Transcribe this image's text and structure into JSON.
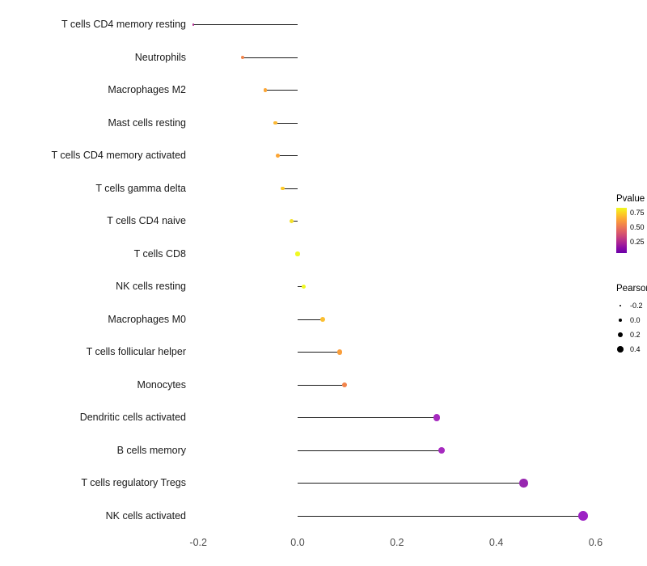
{
  "chart_data": {
    "type": "lollipop",
    "title": "",
    "xlabel": "",
    "ylabel": "",
    "xlim": [
      -0.25,
      0.66
    ],
    "x_ticks": [
      -0.2,
      0.0,
      0.2,
      0.4,
      0.6
    ],
    "x_tick_labels": [
      "-0.2",
      "0.0",
      "0.2",
      "0.4",
      "0.6"
    ],
    "grid": "off",
    "categories": [
      "T cells CD4 memory resting",
      "Neutrophils",
      "Macrophages M2",
      "Mast cells resting",
      "T cells CD4 memory activated",
      "T cells gamma delta",
      "T cells CD4 naive",
      "T cells CD8",
      "NK cells resting",
      "Macrophages M0",
      "T cells follicular helper",
      "Monocytes",
      "Dendritic cells activated",
      "B cells memory",
      "T cells regulatory  Tregs",
      "NK cells activated"
    ],
    "pearson": [
      -0.21,
      -0.11,
      -0.065,
      -0.045,
      -0.04,
      -0.03,
      -0.012,
      0.0,
      0.012,
      0.05,
      0.085,
      0.095,
      0.28,
      0.29,
      0.455,
      0.575
    ],
    "point_colors": [
      "#B02A8F",
      "#F2844B",
      "#FCA636",
      "#FCB834",
      "#FCA636",
      "#FCC928",
      "#F4E02A",
      "#F0F921",
      "#F0F921",
      "#FBBF31",
      "#FA9E3B",
      "#F2844B",
      "#A62ABF",
      "#A62ABF",
      "#9827B0",
      "#9C22C4"
    ],
    "legend": {
      "color_title": "Pvalue",
      "color_tick_labels": [
        "0.75",
        "0.50",
        "0.25"
      ],
      "gradient_stops": [
        "#F0F921",
        "#FCCE25",
        "#FCA636",
        "#F2844B",
        "#E16462",
        "#CC4778",
        "#B12A90",
        "#8F0DA4",
        "#6A00A8"
      ],
      "size_title": "Pearson",
      "size_tick_labels": [
        "-0.2",
        "0.0",
        "0.2",
        "0.4"
      ],
      "size_tick_values": [
        -0.2,
        0.0,
        0.2,
        0.4
      ]
    }
  }
}
